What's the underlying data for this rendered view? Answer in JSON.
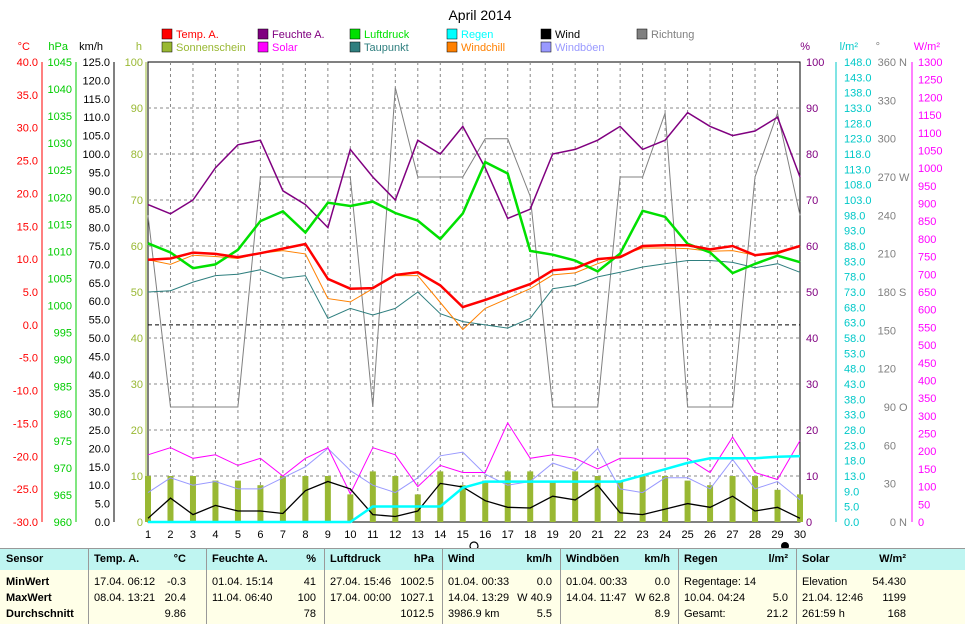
{
  "title": "April 2014",
  "legend": [
    {
      "label": "Temp. A.",
      "color": "#ff0000"
    },
    {
      "label": "Feuchte A.",
      "color": "#800080"
    },
    {
      "label": "Luftdruck",
      "color": "#00e000"
    },
    {
      "label": "Regen",
      "color": "#00ffff"
    },
    {
      "label": "Wind",
      "color": "#000000"
    },
    {
      "label": "Richtung",
      "color": "#808080"
    },
    {
      "label": "Sonnenschein",
      "color": "#99b833"
    },
    {
      "label": "Solar",
      "color": "#ff00ff"
    },
    {
      "label": "Taupunkt",
      "color": "#2f7f7f"
    },
    {
      "label": "Windchill",
      "color": "#ff8000"
    },
    {
      "label": "Windböen",
      "color": "#9999ff"
    }
  ],
  "axis_units": {
    "temp": "°C",
    "pressure": "hPa",
    "wind": "km/h",
    "sun": "h",
    "humidity": "%",
    "rain": "l/m²",
    "direction": "°",
    "solar": "W/m²"
  },
  "axis_ticks": {
    "temp": [
      "40.0",
      "35.0",
      "30.0",
      "25.0",
      "20.0",
      "15.0",
      "10.0",
      "5.0",
      "0.0",
      "-5.0",
      "-10.0",
      "-15.0",
      "-20.0",
      "-25.0",
      "-30.0"
    ],
    "pressure": [
      "1045",
      "1040",
      "1035",
      "1030",
      "1025",
      "1020",
      "1015",
      "1010",
      "1005",
      "1000",
      "995",
      "990",
      "985",
      "980",
      "975",
      "970",
      "965",
      "960"
    ],
    "wind": [
      "125.0",
      "120.0",
      "115.0",
      "110.0",
      "105.0",
      "100.0",
      "95.0",
      "90.0",
      "85.0",
      "80.0",
      "75.0",
      "70.0",
      "65.0",
      "60.0",
      "55.0",
      "50.0",
      "45.0",
      "40.0",
      "35.0",
      "30.0",
      "25.0",
      "20.0",
      "15.0",
      "10.0",
      "5.0",
      "0.0"
    ],
    "sun": [
      "100",
      "90",
      "80",
      "70",
      "60",
      "50",
      "40",
      "30",
      "20",
      "10",
      "0"
    ],
    "humidity": [
      "100",
      "90",
      "80",
      "70",
      "60",
      "50",
      "40",
      "30",
      "20",
      "10",
      "0"
    ],
    "rain": [
      "148.0",
      "143.0",
      "138.0",
      "133.0",
      "128.0",
      "123.0",
      "118.0",
      "113.0",
      "108.0",
      "103.0",
      "98.0",
      "93.0",
      "88.0",
      "83.0",
      "78.0",
      "73.0",
      "68.0",
      "63.0",
      "58.0",
      "53.0",
      "48.0",
      "43.0",
      "38.0",
      "33.0",
      "28.0",
      "23.0",
      "18.0",
      "13.0",
      "9.0",
      "5.0",
      "0.0"
    ],
    "direction": [
      {
        "v": "360",
        "l": "N"
      },
      {
        "v": "330",
        "l": ""
      },
      {
        "v": "300",
        "l": ""
      },
      {
        "v": "270",
        "l": "W"
      },
      {
        "v": "240",
        "l": ""
      },
      {
        "v": "210",
        "l": ""
      },
      {
        "v": "180",
        "l": "S"
      },
      {
        "v": "150",
        "l": ""
      },
      {
        "v": "120",
        "l": ""
      },
      {
        "v": "90",
        "l": "O"
      },
      {
        "v": "60",
        "l": ""
      },
      {
        "v": "30",
        "l": ""
      },
      {
        "v": "0",
        "l": "N"
      }
    ],
    "solar": [
      "1300",
      "1250",
      "1200",
      "1150",
      "1100",
      "1050",
      "1000",
      "950",
      "900",
      "850",
      "800",
      "750",
      "700",
      "650",
      "600",
      "550",
      "500",
      "450",
      "400",
      "350",
      "300",
      "250",
      "200",
      "150",
      "100",
      "50",
      "0"
    ]
  },
  "chart_data": {
    "type": "line",
    "title": "April 2014",
    "x": [
      1,
      2,
      3,
      4,
      5,
      6,
      7,
      8,
      9,
      10,
      11,
      12,
      13,
      14,
      15,
      16,
      17,
      18,
      19,
      20,
      21,
      22,
      23,
      24,
      25,
      26,
      27,
      28,
      29,
      30
    ],
    "series": [
      {
        "name": "Temp. A.",
        "unit": "°C",
        "color": "#ff0000",
        "values": [
          9.9,
          10.1,
          11.0,
          10.8,
          10.3,
          10.9,
          11.6,
          12.3,
          7.0,
          5.5,
          5.6,
          7.6,
          8.0,
          6.0,
          2.7,
          3.8,
          5.0,
          6.2,
          8.3,
          8.6,
          10.0,
          10.3,
          12.0,
          12.1,
          12.1,
          11.5,
          12.0,
          10.6,
          11.0,
          12.0
        ]
      },
      {
        "name": "Feuchte A.",
        "unit": "%",
        "color": "#800080",
        "values": [
          69,
          67,
          70,
          77,
          82,
          83,
          72,
          69,
          64,
          81,
          75,
          70,
          83,
          80,
          86,
          77,
          66,
          68,
          80,
          81,
          83,
          86,
          81,
          83,
          89,
          86,
          84,
          85,
          88,
          75
        ]
      },
      {
        "name": "Luftdruck",
        "unit": "hPa",
        "color": "#00e000",
        "values": [
          1011.5,
          1009.8,
          1006.9,
          1007.6,
          1010.3,
          1015.6,
          1017.4,
          1013.5,
          1019.0,
          1018.4,
          1019.2,
          1017.1,
          1015.7,
          1012.3,
          1017.0,
          1026.5,
          1024.4,
          1010.1,
          1009.4,
          1008.3,
          1006.3,
          1009.6,
          1017.5,
          1016.4,
          1011.4,
          1009.8,
          1006.0,
          1007.7,
          1009.2,
          1008.0
        ]
      },
      {
        "name": "Taupunkt",
        "unit": "°C",
        "color": "#2f7f7f",
        "values": [
          5.0,
          5.2,
          6.5,
          7.5,
          7.7,
          8.4,
          7.1,
          7.5,
          1.0,
          2.5,
          1.5,
          2.5,
          5.0,
          1.7,
          0.5,
          0.0,
          -0.5,
          1.0,
          5.5,
          6.0,
          7.3,
          8.0,
          8.8,
          9.3,
          9.8,
          9.8,
          9.5,
          8.7,
          9.3,
          8.0
        ]
      },
      {
        "name": "Windchill",
        "unit": "°C",
        "color": "#ff8000",
        "values": [
          9.9,
          9.2,
          10.6,
          10.4,
          10.1,
          10.9,
          11.3,
          10.8,
          4.0,
          3.5,
          5.5,
          7.5,
          7.5,
          3.4,
          -0.7,
          2.5,
          4.0,
          5.5,
          7.6,
          7.9,
          9.3,
          10.5,
          11.7,
          11.7,
          11.6,
          11.2,
          11.3,
          10.6,
          10.8,
          12.0
        ]
      },
      {
        "name": "Wind",
        "unit": "km/h",
        "color": "#000000",
        "values": [
          1.0,
          6.5,
          2.0,
          4.5,
          3.0,
          3.0,
          2.3,
          8.5,
          11.0,
          9.0,
          2.0,
          1.5,
          3.0,
          10.5,
          9.5,
          5.8,
          4.0,
          3.8,
          7.0,
          6.0,
          10.0,
          2.5,
          2.0,
          3.5,
          5.0,
          4.0,
          7.0,
          3.0,
          4.0,
          1.0
        ]
      },
      {
        "name": "Windböen",
        "unit": "km/h",
        "color": "#9999ff",
        "values": [
          8,
          12,
          10,
          11,
          9,
          9,
          12,
          15,
          20,
          14,
          10,
          8,
          12,
          18,
          19,
          13,
          10,
          11,
          16,
          14,
          20,
          9,
          8,
          12,
          12,
          9,
          17,
          9,
          11,
          6
        ]
      },
      {
        "name": "Regen",
        "unit": "l/m²",
        "color": "#00ffff",
        "values": [
          0,
          0,
          0,
          0,
          0,
          0,
          0,
          0,
          0,
          0,
          5,
          5,
          5,
          5,
          11,
          13,
          13,
          13,
          13,
          13,
          13,
          13,
          15,
          17,
          19,
          20.5,
          20.5,
          20.5,
          21,
          21.2
        ]
      },
      {
        "name": "Richtung",
        "unit": "°",
        "color": "#808080",
        "values": [
          240,
          90,
          90,
          90,
          90,
          270,
          270,
          270,
          270,
          270,
          90,
          340,
          270,
          270,
          270,
          300,
          300,
          255,
          90,
          90,
          90,
          270,
          270,
          320,
          90,
          90,
          90,
          270,
          320,
          240
        ]
      },
      {
        "name": "Solar",
        "unit": "W/m²",
        "color": "#ff00ff",
        "values": [
          190,
          210,
          180,
          190,
          160,
          180,
          130,
          180,
          210,
          80,
          210,
          190,
          100,
          160,
          140,
          140,
          280,
          180,
          190,
          180,
          150,
          180,
          180,
          180,
          180,
          140,
          240,
          140,
          120,
          230
        ]
      },
      {
        "name": "Sonnenschein",
        "unit": "h",
        "color": "#99b833",
        "type": "bar",
        "values": [
          10,
          10,
          10,
          9,
          9,
          8,
          10,
          10,
          10,
          6,
          11,
          10,
          6,
          11,
          8,
          9,
          11,
          11,
          9,
          11,
          10,
          9,
          10,
          10,
          9,
          8,
          10,
          10,
          7,
          6
        ]
      }
    ],
    "axes": {
      "temp": {
        "label": "°C",
        "ylim": [
          -30,
          40
        ]
      },
      "pressure": {
        "label": "hPa",
        "ylim": [
          960,
          1045
        ]
      },
      "wind": {
        "label": "km/h",
        "ylim": [
          0,
          125
        ]
      },
      "sun": {
        "label": "h",
        "ylim": [
          0,
          100
        ]
      },
      "humidity": {
        "label": "%",
        "ylim": [
          0,
          100
        ]
      },
      "rain": {
        "label": "l/m²",
        "ylim": [
          0,
          148
        ]
      },
      "direction": {
        "label": "°",
        "ylim": [
          0,
          360
        ]
      },
      "solar": {
        "label": "W/m²",
        "ylim": [
          0,
          1300
        ]
      }
    },
    "grid": true
  },
  "stats": {
    "headers": [
      {
        "label": "Sensor",
        "unit": ""
      },
      {
        "label": "Temp. A.",
        "unit": "°C"
      },
      {
        "label": "Feuchte A.",
        "unit": "%"
      },
      {
        "label": "Luftdruck",
        "unit": "hPa"
      },
      {
        "label": "Wind",
        "unit": "km/h"
      },
      {
        "label": "Windböen",
        "unit": "km/h"
      },
      {
        "label": "Regen",
        "unit": "l/m²"
      },
      {
        "label": "Solar",
        "unit": "W/m²"
      }
    ],
    "row_labels": [
      "MinWert",
      "MaxWert",
      "Durchschnitt"
    ],
    "temp": [
      {
        "t": "17.04.  06:12",
        "v": "-0.3"
      },
      {
        "t": "08.04.  13:21",
        "v": "20.4"
      },
      {
        "t": "",
        "v": "9.86"
      }
    ],
    "humidity": [
      {
        "t": "01.04.  15:14",
        "v": "41"
      },
      {
        "t": "11.04.  06:40",
        "v": "100"
      },
      {
        "t": "",
        "v": "78"
      }
    ],
    "pressure": [
      {
        "t": "27.04.  15:46",
        "v": "1002.5"
      },
      {
        "t": "17.04.  00:00",
        "v": "1027.1"
      },
      {
        "t": "",
        "v": "1012.5"
      }
    ],
    "wind": [
      {
        "t": "01.04.  00:33",
        "v": "0.0"
      },
      {
        "t": "14.04.  13:29",
        "v": "W 40.9"
      },
      {
        "t": "3986.9 km",
        "v": "5.5"
      }
    ],
    "gust": [
      {
        "t": "01.04.  00:33",
        "v": "0.0"
      },
      {
        "t": "14.04.  11:47",
        "v": "W 62.8"
      },
      {
        "t": "",
        "v": "8.9"
      }
    ],
    "rain": [
      {
        "t": "Regentage: 14",
        "v": ""
      },
      {
        "t": "10.04.  04:24",
        "v": "5.0"
      },
      {
        "t": "Gesamt:",
        "v": "21.2"
      }
    ],
    "solar": [
      {
        "t": "Elevation",
        "v": "54.430"
      },
      {
        "t": "21.04.  12:46",
        "v": "1199"
      },
      {
        "t": "261:59 h",
        "v": "168"
      }
    ]
  }
}
